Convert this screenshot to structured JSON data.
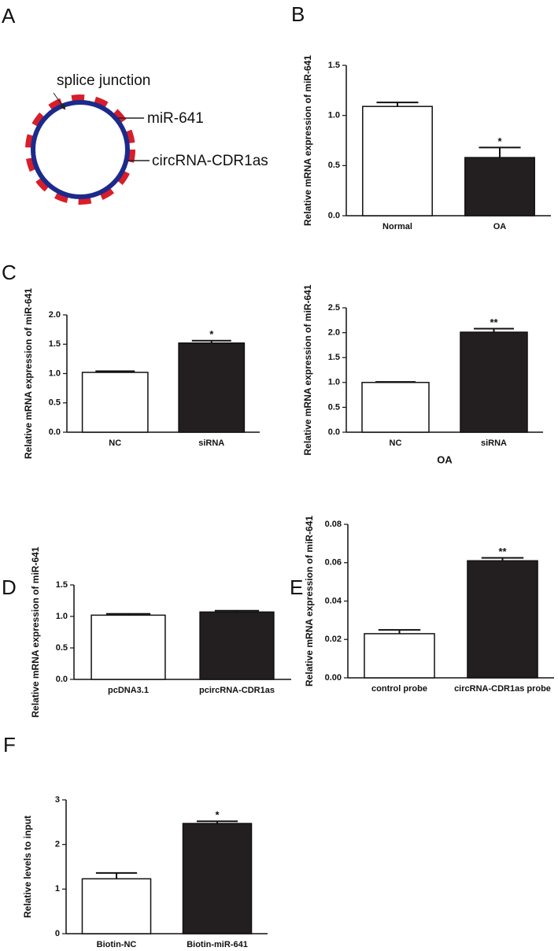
{
  "panel_labels": [
    "A",
    "B",
    "C",
    "D",
    "E",
    "F"
  ],
  "diagram": {
    "labels": [
      "splice junction",
      "miR-641",
      "circRNA-CDR1as"
    ]
  },
  "chart_data": [
    {
      "type": "bar",
      "ylabel": "Relative mRNA expression of miR-641",
      "categories": [
        "Normal",
        "OA"
      ],
      "values": [
        1.09,
        0.58
      ],
      "errors": [
        0.04,
        0.1
      ],
      "significance": [
        null,
        "*"
      ],
      "colors": [
        "#ffffff",
        "#231f20"
      ],
      "ylim": [
        0,
        1.5
      ],
      "yticks": [
        {
          "value": 0,
          "label": "0.0"
        },
        0.5,
        {
          "value": 1,
          "label": "1.0"
        },
        1.5
      ]
    },
    {
      "type": "bar",
      "ylabel": "Relative mRNA expression of miR-641",
      "categories": [
        "NC",
        "siRNA"
      ],
      "values": [
        1.02,
        1.52
      ],
      "errors": [
        0.02,
        0.04
      ],
      "significance": [
        null,
        "*"
      ],
      "colors": [
        "#ffffff",
        "#231f20"
      ],
      "ylim": [
        0,
        2
      ],
      "yticks": [
        {
          "value": 0,
          "label": "0.0"
        },
        0.5,
        {
          "value": 1,
          "label": "1.0"
        },
        1.5,
        {
          "value": 2,
          "label": "2.0"
        }
      ]
    },
    {
      "type": "bar",
      "ylabel": "Relative mRNA expression of miR-641",
      "xlabel": "OA",
      "categories": [
        "NC",
        "siRNA"
      ],
      "values": [
        1.0,
        2.01
      ],
      "errors": [
        0.01,
        0.07
      ],
      "significance": [
        null,
        "**"
      ],
      "colors": [
        "#ffffff",
        "#231f20"
      ],
      "ylim": [
        0,
        2.5
      ],
      "yticks": [
        {
          "value": 0,
          "label": "0.0"
        },
        0.5,
        {
          "value": 1,
          "label": "1.0"
        },
        1.5,
        {
          "value": 2,
          "label": "2.0"
        },
        2.5
      ]
    },
    {
      "type": "bar",
      "ylabel": "Relative mRNA expression of miR-641",
      "categories": [
        "pcDNA3.1",
        "pcircRNA-CDR1as"
      ],
      "values": [
        1.02,
        1.07
      ],
      "errors": [
        0.02,
        0.02
      ],
      "significance": [
        null,
        null
      ],
      "colors": [
        "#ffffff",
        "#231f20"
      ],
      "ylim": [
        0,
        1.5
      ],
      "yticks": [
        {
          "value": 0,
          "label": "0.0"
        },
        0.5,
        {
          "value": 1,
          "label": "1.0"
        },
        1.5
      ]
    },
    {
      "type": "bar",
      "ylabel": "Relative mRNA expression of miR-641",
      "categories": [
        "control probe",
        "circRNA-CDR1as probe"
      ],
      "values": [
        0.023,
        0.061
      ],
      "errors": [
        0.002,
        0.0015
      ],
      "significance": [
        null,
        "**"
      ],
      "colors": [
        "#ffffff",
        "#231f20"
      ],
      "ylim": [
        0,
        0.08
      ],
      "yticks": [
        {
          "value": 0,
          "label": "0.00"
        },
        {
          "value": 0.02,
          "label": "0.02"
        },
        {
          "value": 0.04,
          "label": "0.04"
        },
        {
          "value": 0.06,
          "label": "0.06"
        },
        {
          "value": 0.08,
          "label": "0.08"
        }
      ]
    },
    {
      "type": "bar",
      "ylabel": "Relative levels to input",
      "categories": [
        "Biotin-NC",
        "Biotin-miR-641"
      ],
      "values": [
        1.23,
        2.47
      ],
      "errors": [
        0.13,
        0.05
      ],
      "significance": [
        null,
        "*"
      ],
      "colors": [
        "#ffffff",
        "#231f20"
      ],
      "ylim": [
        0,
        3
      ],
      "yticks": [
        0,
        1,
        2,
        3
      ]
    }
  ]
}
